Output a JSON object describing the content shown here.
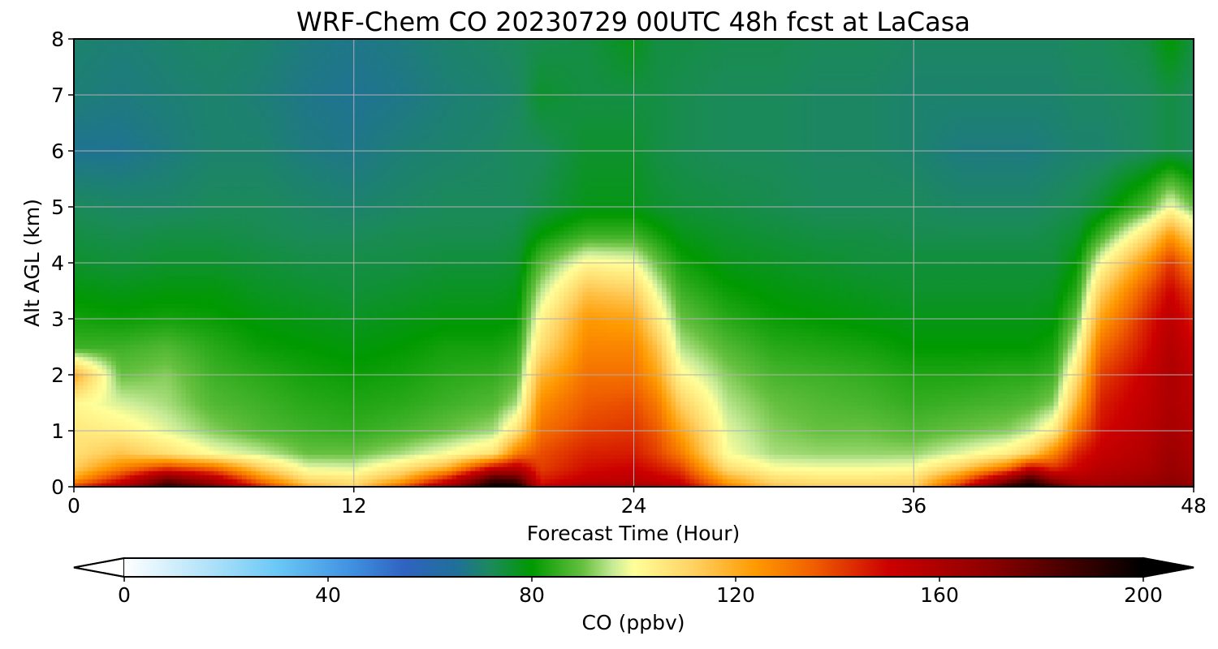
{
  "chart_data": {
    "type": "heatmap",
    "title": "WRF-Chem CO  20230729 00UTC 48h fcst at LaCasa",
    "xlabel": "Forecast Time (Hour)",
    "ylabel": "Alt AGL (km)",
    "xlim": [
      0,
      48
    ],
    "ylim": [
      0,
      8
    ],
    "xticks": [
      0,
      12,
      24,
      36,
      48
    ],
    "yticks": [
      0,
      1,
      2,
      3,
      4,
      5,
      6,
      7,
      8
    ],
    "grid": true,
    "x": [
      0,
      2,
      4,
      6,
      8,
      10,
      12,
      14,
      16,
      18,
      19,
      20,
      22,
      24,
      25,
      26,
      28,
      30,
      32,
      34,
      36,
      38,
      40,
      41,
      42,
      43,
      44,
      46,
      47,
      48
    ],
    "y": [
      0,
      0.15,
      0.35,
      0.6,
      1.0,
      1.5,
      2.0,
      2.5,
      3.0,
      3.5,
      4.0,
      4.5,
      5.0,
      6.0,
      7.0,
      8.0
    ],
    "z": [
      [
        140,
        160,
        190,
        175,
        145,
        120,
        110,
        135,
        165,
        200,
        200,
        150,
        160,
        160,
        158,
        155,
        130,
        115,
        112,
        112,
        112,
        145,
        190,
        200,
        185,
        170,
        165,
        168,
        172,
        170
      ],
      [
        122,
        145,
        175,
        158,
        128,
        108,
        106,
        118,
        145,
        185,
        180,
        145,
        152,
        155,
        152,
        148,
        120,
        108,
        106,
        106,
        108,
        130,
        165,
        185,
        165,
        158,
        160,
        164,
        168,
        165
      ],
      [
        112,
        128,
        140,
        132,
        112,
        98,
        97,
        106,
        118,
        150,
        155,
        140,
        148,
        150,
        146,
        140,
        108,
        100,
        99,
        99,
        100,
        112,
        130,
        150,
        142,
        150,
        156,
        160,
        166,
        162
      ],
      [
        108,
        115,
        108,
        100,
        96,
        90,
        90,
        94,
        100,
        108,
        130,
        138,
        145,
        146,
        140,
        130,
        100,
        94,
        93,
        93,
        93,
        98,
        104,
        112,
        128,
        145,
        152,
        158,
        165,
        160
      ],
      [
        106,
        104,
        98,
        92,
        88,
        86,
        85,
        87,
        90,
        94,
        108,
        132,
        140,
        142,
        136,
        122,
        98,
        92,
        90,
        90,
        88,
        90,
        92,
        96,
        105,
        132,
        148,
        156,
        162,
        158
      ],
      [
        102,
        97,
        94,
        88,
        86,
        84,
        83,
        84,
        86,
        88,
        94,
        126,
        136,
        138,
        130,
        112,
        95,
        90,
        88,
        87,
        85,
        86,
        87,
        88,
        92,
        118,
        145,
        154,
        160,
        156
      ],
      [
        120,
        90,
        92,
        86,
        84,
        82,
        81,
        82,
        84,
        85,
        88,
        118,
        132,
        132,
        122,
        102,
        92,
        87,
        86,
        85,
        83,
        83,
        84,
        84,
        86,
        108,
        140,
        152,
        160,
        154
      ],
      [
        86,
        86,
        88,
        84,
        81,
        80,
        79,
        80,
        82,
        82,
        84,
        108,
        128,
        128,
        115,
        95,
        88,
        84,
        83,
        82,
        80,
        80,
        80,
        80,
        82,
        98,
        132,
        148,
        158,
        150
      ],
      [
        82,
        81,
        82,
        81,
        79,
        78,
        77,
        78,
        79,
        79,
        80,
        102,
        124,
        122,
        106,
        90,
        84,
        81,
        80,
        79,
        78,
        78,
        78,
        78,
        79,
        90,
        122,
        145,
        155,
        146
      ],
      [
        79,
        78,
        79,
        79,
        77,
        76,
        75,
        76,
        77,
        77,
        78,
        95,
        115,
        112,
        98,
        86,
        81,
        79,
        78,
        77,
        76,
        76,
        76,
        76,
        77,
        84,
        112,
        138,
        150,
        140
      ],
      [
        76,
        75,
        76,
        76,
        75,
        74,
        74,
        74,
        75,
        75,
        76,
        88,
        102,
        100,
        90,
        82,
        78,
        77,
        76,
        75,
        75,
        75,
        75,
        75,
        75,
        80,
        100,
        126,
        142,
        128
      ],
      [
        74,
        73,
        74,
        74,
        73,
        72,
        72,
        73,
        73,
        73,
        74,
        80,
        86,
        86,
        82,
        78,
        76,
        75,
        74,
        74,
        73,
        73,
        73,
        73,
        74,
        76,
        86,
        108,
        124,
        110
      ],
      [
        72,
        71,
        71,
        72,
        72,
        71,
        70,
        71,
        72,
        72,
        72,
        74,
        78,
        78,
        76,
        75,
        74,
        73,
        72,
        72,
        72,
        71,
        71,
        71,
        72,
        73,
        76,
        88,
        100,
        90
      ],
      [
        66,
        66,
        68,
        70,
        70,
        68,
        67,
        69,
        70,
        71,
        72,
        72,
        76,
        76,
        74,
        73,
        72,
        72,
        71,
        71,
        70,
        68,
        68,
        68,
        69,
        70,
        70,
        72,
        74,
        72
      ],
      [
        69,
        68,
        69,
        70,
        69,
        67,
        66,
        67,
        69,
        70,
        71,
        76,
        74,
        74,
        74,
        73,
        72,
        72,
        71,
        71,
        70,
        70,
        70,
        70,
        70,
        71,
        71,
        72,
        74,
        72
      ],
      [
        70,
        69,
        70,
        71,
        70,
        68,
        67,
        68,
        70,
        71,
        72,
        73,
        74,
        78,
        74,
        74,
        73,
        73,
        72,
        72,
        71,
        71,
        71,
        71,
        71,
        72,
        72,
        74,
        80,
        74
      ]
    ],
    "colorbar": {
      "label": "CO  (ppbv)",
      "ticks": [
        0,
        40,
        80,
        120,
        160,
        200
      ],
      "vmin": 0,
      "vmax": 200,
      "extend": "both",
      "colorscale": [
        [
          0,
          "#ffffff"
        ],
        [
          20,
          "#9fdcf8"
        ],
        [
          30,
          "#6ac8f5"
        ],
        [
          45,
          "#3f8fe0"
        ],
        [
          55,
          "#2f63c0"
        ],
        [
          65,
          "#206f9a"
        ],
        [
          72,
          "#1b8a5a"
        ],
        [
          80,
          "#009900"
        ],
        [
          90,
          "#66c040"
        ],
        [
          96,
          "#c8eb98"
        ],
        [
          100,
          "#ffff99"
        ],
        [
          112,
          "#ffd060"
        ],
        [
          124,
          "#ff9900"
        ],
        [
          135,
          "#f06000"
        ],
        [
          150,
          "#cc0000"
        ],
        [
          170,
          "#8c0000"
        ],
        [
          200,
          "#000000"
        ]
      ]
    }
  }
}
